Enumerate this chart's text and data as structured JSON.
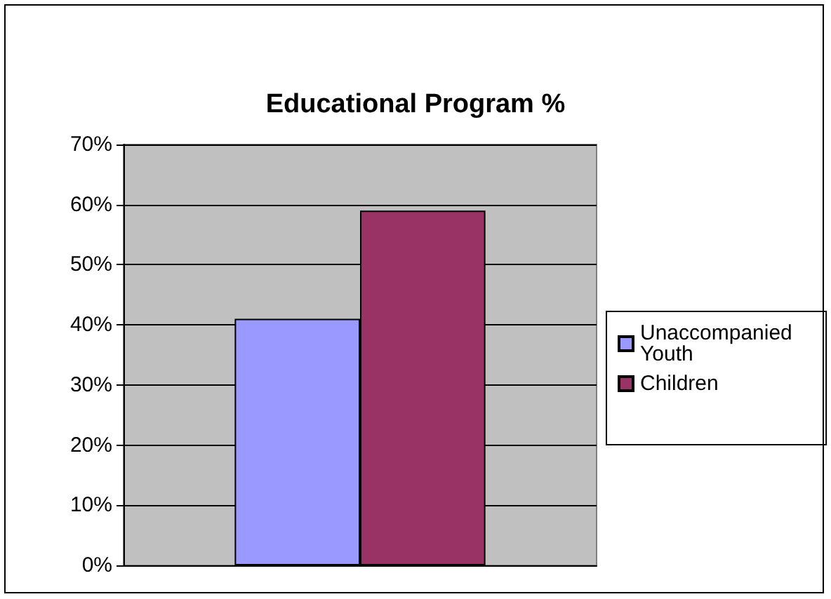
{
  "chart_data": {
    "type": "bar",
    "title": "Educational Program %",
    "categories": [
      null
    ],
    "series": [
      {
        "name": "Unaccompanied Youth",
        "color": "#9999ff",
        "values": [
          41
        ]
      },
      {
        "name": "Children",
        "color": "#993366",
        "values": [
          59
        ]
      }
    ],
    "ylim": [
      0,
      70
    ],
    "yticks": [
      {
        "value": 0,
        "label": "0%"
      },
      {
        "value": 10,
        "label": "10%"
      },
      {
        "value": 20,
        "label": "20%"
      },
      {
        "value": 30,
        "label": "30%"
      },
      {
        "value": 40,
        "label": "40%"
      },
      {
        "value": 50,
        "label": "50%"
      },
      {
        "value": 60,
        "label": "60%"
      },
      {
        "value": 70,
        "label": "70%"
      }
    ],
    "grid": "y",
    "legend": "right"
  }
}
